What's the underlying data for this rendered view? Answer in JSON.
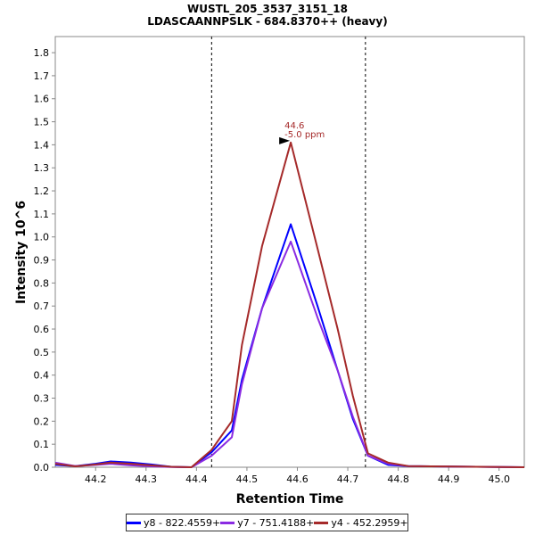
{
  "chart_data": {
    "type": "line",
    "title": "WUSTL_205_3537_3151_18",
    "subtitle": "LDASCAANNPSLK - 684.8370++ (heavy)",
    "xlabel": "Retention Time",
    "ylabel": "Intensity 10^6",
    "xlim": [
      44.12,
      45.05
    ],
    "ylim": [
      0,
      1.87
    ],
    "xticks": [
      "44.2",
      "44.3",
      "44.4",
      "44.5",
      "44.6",
      "44.7",
      "44.8",
      "44.9",
      "45.0"
    ],
    "yticks": [
      "0.0",
      "0.1",
      "0.2",
      "0.3",
      "0.4",
      "0.5",
      "0.6",
      "0.7",
      "0.8",
      "0.9",
      "1.0",
      "1.1",
      "1.2",
      "1.3",
      "1.4",
      "1.5",
      "1.6",
      "1.7",
      "1.8"
    ],
    "boundaries": [
      44.43,
      44.735
    ],
    "annotation": {
      "x": 44.587,
      "y": 1.41,
      "line1": "44.6",
      "line2": "-5.0 ppm",
      "color": "#a52a2a"
    },
    "series": [
      {
        "name": "y8 - 822.4559+",
        "color": "#0000ff",
        "x": [
          44.12,
          44.16,
          44.2,
          44.23,
          44.27,
          44.31,
          44.35,
          44.39,
          44.43,
          44.47,
          44.49,
          44.53,
          44.587,
          44.64,
          44.68,
          44.71,
          44.74,
          44.78,
          44.82,
          45.05
        ],
        "y": [
          0.01,
          0.005,
          0.015,
          0.025,
          0.02,
          0.012,
          0.002,
          0.0,
          0.065,
          0.16,
          0.38,
          0.69,
          1.055,
          0.7,
          0.42,
          0.21,
          0.05,
          0.01,
          0.005,
          0.0
        ]
      },
      {
        "name": "y7 - 751.4188+",
        "color": "#8a2be2",
        "x": [
          44.12,
          44.16,
          44.2,
          44.23,
          44.27,
          44.31,
          44.35,
          44.39,
          44.43,
          44.47,
          44.49,
          44.53,
          44.587,
          44.64,
          44.68,
          44.71,
          44.74,
          44.78,
          44.82,
          45.05
        ],
        "y": [
          0.02,
          0.005,
          0.01,
          0.015,
          0.008,
          0.004,
          0.001,
          0.0,
          0.05,
          0.13,
          0.36,
          0.69,
          0.98,
          0.65,
          0.42,
          0.22,
          0.05,
          0.015,
          0.005,
          0.0
        ]
      },
      {
        "name": "y4 - 452.2959+",
        "color": "#a52a2a",
        "x": [
          44.12,
          44.16,
          44.2,
          44.23,
          44.27,
          44.31,
          44.35,
          44.39,
          44.43,
          44.47,
          44.49,
          44.53,
          44.587,
          44.64,
          44.68,
          44.71,
          44.74,
          44.78,
          44.82,
          45.05
        ],
        "y": [
          0.015,
          0.004,
          0.012,
          0.02,
          0.015,
          0.008,
          0.002,
          0.0,
          0.075,
          0.2,
          0.53,
          0.96,
          1.41,
          0.95,
          0.6,
          0.31,
          0.06,
          0.02,
          0.005,
          0.0
        ]
      }
    ]
  }
}
